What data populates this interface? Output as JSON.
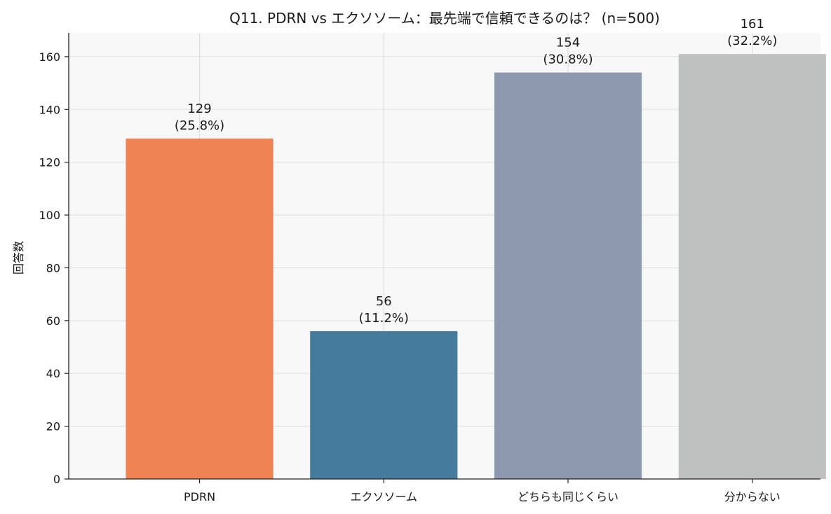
{
  "chart_data": {
    "type": "bar",
    "title": "Q11. PDRN vs エクソソーム：最先端で信頼できるのは？ (n=500)",
    "xlabel": "",
    "ylabel": "回答数",
    "categories": [
      "PDRN",
      "エクソソーム",
      "どちらも同じくらい",
      "分からない"
    ],
    "values": [
      129,
      56,
      154,
      161
    ],
    "percent_labels": [
      "(25.8%)",
      "(11.2%)",
      "(30.8%)",
      "(32.2%)"
    ],
    "colors": [
      "#ef8354",
      "#457b9d",
      "#8d99ae",
      "#bfc0c0"
    ],
    "ylim": [
      0,
      169
    ],
    "yticks": [
      0,
      20,
      40,
      60,
      80,
      100,
      120,
      140,
      160
    ],
    "grid": true,
    "legend": "none"
  }
}
